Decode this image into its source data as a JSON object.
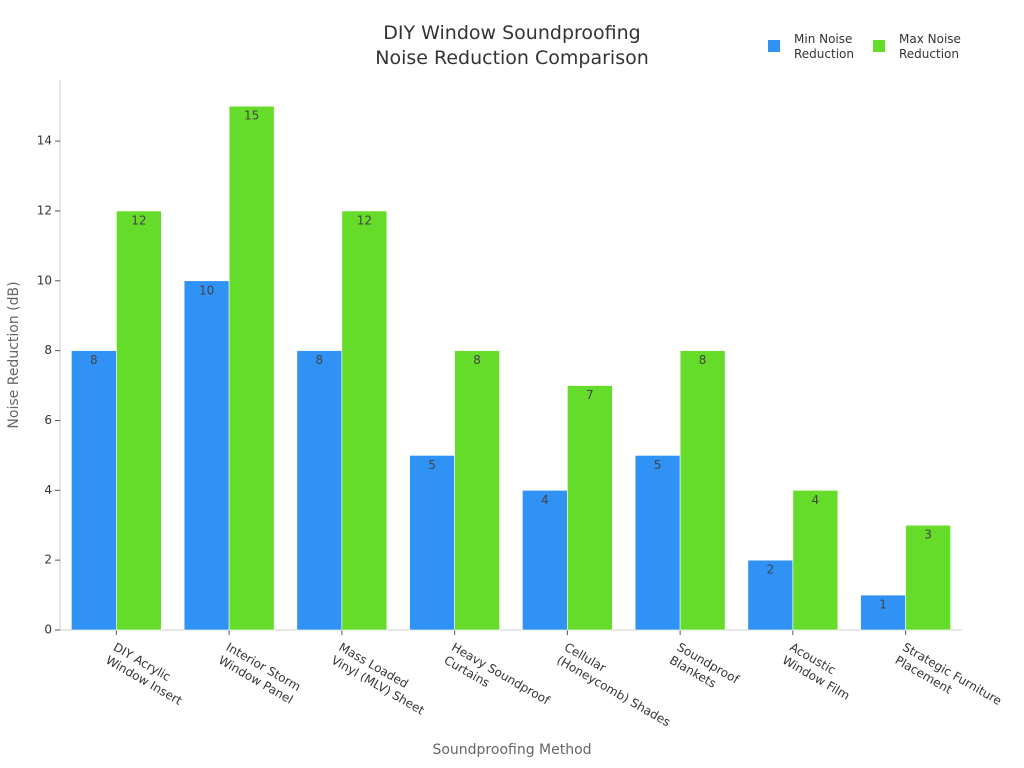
{
  "chart_data": {
    "type": "bar",
    "title": "DIY Window Soundproofing\nNoise Reduction Comparison",
    "x_label": "Soundproofing Method",
    "y_label": "Noise Reduction (dB)",
    "categories": [
      "DIY Acrylic\nWindow Insert",
      "Interior Storm\nWindow Panel",
      "Mass Loaded\nVinyl (MLV) Sheet",
      "Heavy Soundproof\nCurtains",
      "Cellular\n(Honeycomb) Shades",
      "Soundproof\nBlankets",
      "Acoustic\nWindow Film",
      "Strategic Furniture\nPlacement"
    ],
    "series": [
      {
        "name": "Min Noise\nReduction",
        "color": "#3192f5",
        "values": [
          8,
          10,
          8,
          5,
          4,
          5,
          2,
          1
        ]
      },
      {
        "name": "Max Noise\nReduction",
        "color": "#66dc2a",
        "values": [
          12,
          15,
          12,
          8,
          7,
          8,
          4,
          3
        ]
      }
    ],
    "ylim": [
      0,
      15.75
    ],
    "yticks": [
      0,
      2,
      4,
      6,
      8,
      10,
      12,
      14
    ],
    "legend": "top-right"
  }
}
